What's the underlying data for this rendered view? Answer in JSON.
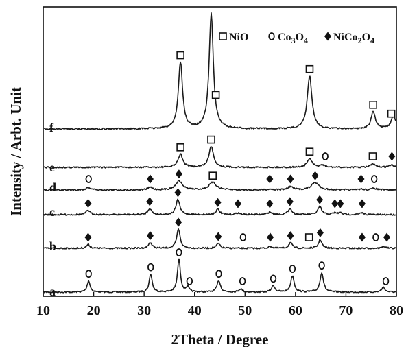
{
  "chart_data": {
    "type": "line",
    "xlabel": "2Theta / Degree",
    "ylabel": "Intensity / Arbt. Unit",
    "xlim": [
      10,
      80
    ],
    "x_ticks": [
      10,
      20,
      30,
      40,
      50,
      60,
      70,
      80
    ],
    "y_ticks_shown": false,
    "legend": {
      "placement": "top-right",
      "entries": [
        {
          "marker": "open-square",
          "label": "NiO"
        },
        {
          "marker": "open-circle",
          "label": "Co3O4"
        },
        {
          "marker": "filled-diamond",
          "label": "NiCo2O4"
        }
      ]
    },
    "series": [
      {
        "name": "a",
        "peaks": [
          {
            "x": 19.0,
            "h": 0.35,
            "w": 0.35
          },
          {
            "x": 31.3,
            "h": 0.55,
            "w": 0.35
          },
          {
            "x": 36.9,
            "h": 1.0,
            "w": 0.35
          },
          {
            "x": 38.6,
            "h": 0.15,
            "w": 0.35
          },
          {
            "x": 44.8,
            "h": 0.35,
            "w": 0.4
          },
          {
            "x": 49.1,
            "h": 0.1,
            "w": 0.4
          },
          {
            "x": 55.6,
            "h": 0.2,
            "w": 0.4
          },
          {
            "x": 59.4,
            "h": 0.5,
            "w": 0.4
          },
          {
            "x": 65.2,
            "h": 0.6,
            "w": 0.4
          },
          {
            "x": 77.4,
            "h": 0.15,
            "w": 0.4
          }
        ],
        "markers": [
          {
            "x": 19.0,
            "type": "circle"
          },
          {
            "x": 31.3,
            "type": "circle"
          },
          {
            "x": 36.9,
            "type": "circle"
          },
          {
            "x": 39.0,
            "type": "circle"
          },
          {
            "x": 44.8,
            "type": "circle"
          },
          {
            "x": 49.5,
            "type": "circle"
          },
          {
            "x": 55.6,
            "type": "circle"
          },
          {
            "x": 59.4,
            "type": "circle"
          },
          {
            "x": 65.2,
            "type": "circle"
          },
          {
            "x": 77.9,
            "type": "circle"
          }
        ]
      },
      {
        "name": "b",
        "peaks": [
          {
            "x": 18.9,
            "h": 0.2,
            "w": 0.4
          },
          {
            "x": 31.2,
            "h": 0.3,
            "w": 0.4
          },
          {
            "x": 36.8,
            "h": 1.0,
            "w": 0.4
          },
          {
            "x": 44.7,
            "h": 0.25,
            "w": 0.4
          },
          {
            "x": 55.0,
            "h": 0.1,
            "w": 0.4
          },
          {
            "x": 59.0,
            "h": 0.3,
            "w": 0.4
          },
          {
            "x": 64.9,
            "h": 0.45,
            "w": 0.4
          },
          {
            "x": 77.5,
            "h": 0.1,
            "w": 0.4
          }
        ],
        "markers": [
          {
            "x": 18.9,
            "type": "diamond"
          },
          {
            "x": 31.2,
            "type": "diamond"
          },
          {
            "x": 36.8,
            "type": "diamond"
          },
          {
            "x": 44.7,
            "type": "diamond"
          },
          {
            "x": 49.6,
            "type": "circle"
          },
          {
            "x": 55.0,
            "type": "diamond"
          },
          {
            "x": 59.0,
            "type": "diamond"
          },
          {
            "x": 62.7,
            "type": "square"
          },
          {
            "x": 64.9,
            "type": "diamond"
          },
          {
            "x": 73.2,
            "type": "diamond"
          },
          {
            "x": 75.9,
            "type": "circle"
          },
          {
            "x": 78.1,
            "type": "diamond"
          }
        ]
      },
      {
        "name": "c",
        "peaks": [
          {
            "x": 18.9,
            "h": 0.25,
            "w": 0.45
          },
          {
            "x": 31.1,
            "h": 0.35,
            "w": 0.45
          },
          {
            "x": 36.7,
            "h": 0.85,
            "w": 0.45
          },
          {
            "x": 44.6,
            "h": 0.3,
            "w": 0.45
          },
          {
            "x": 48.6,
            "h": 0.1,
            "w": 0.45
          },
          {
            "x": 54.9,
            "h": 0.15,
            "w": 0.45
          },
          {
            "x": 58.9,
            "h": 0.35,
            "w": 0.45
          },
          {
            "x": 64.8,
            "h": 0.45,
            "w": 0.45
          },
          {
            "x": 67.8,
            "h": 0.1,
            "w": 0.45
          },
          {
            "x": 68.9,
            "h": 0.1,
            "w": 0.45
          },
          {
            "x": 73.2,
            "h": 0.1,
            "w": 0.45
          }
        ],
        "markers": [
          {
            "x": 18.9,
            "type": "diamond"
          },
          {
            "x": 31.1,
            "type": "diamond"
          },
          {
            "x": 36.7,
            "type": "diamond"
          },
          {
            "x": 44.6,
            "type": "diamond"
          },
          {
            "x": 48.6,
            "type": "diamond"
          },
          {
            "x": 54.9,
            "type": "diamond"
          },
          {
            "x": 58.9,
            "type": "diamond"
          },
          {
            "x": 64.8,
            "type": "diamond"
          },
          {
            "x": 67.8,
            "type": "diamond"
          },
          {
            "x": 68.9,
            "type": "diamond"
          },
          {
            "x": 73.2,
            "type": "diamond"
          }
        ]
      },
      {
        "name": "d",
        "peaks": [
          {
            "x": 19.0,
            "h": 0.15,
            "w": 0.6
          },
          {
            "x": 31.2,
            "h": 0.15,
            "w": 0.6
          },
          {
            "x": 36.9,
            "h": 0.55,
            "w": 0.8
          },
          {
            "x": 43.6,
            "h": 0.45,
            "w": 0.9
          },
          {
            "x": 54.9,
            "h": 0.05,
            "w": 0.6
          },
          {
            "x": 59.0,
            "h": 0.2,
            "w": 0.6
          },
          {
            "x": 63.9,
            "h": 0.45,
            "w": 0.9
          },
          {
            "x": 73.0,
            "h": 0.05,
            "w": 0.6
          },
          {
            "x": 75.6,
            "h": 0.1,
            "w": 0.6
          }
        ],
        "markers": [
          {
            "x": 19.0,
            "type": "circle"
          },
          {
            "x": 31.2,
            "type": "diamond"
          },
          {
            "x": 36.9,
            "type": "diamond"
          },
          {
            "x": 43.6,
            "type": "square"
          },
          {
            "x": 54.9,
            "type": "diamond"
          },
          {
            "x": 59.0,
            "type": "diamond"
          },
          {
            "x": 63.9,
            "type": "diamond"
          },
          {
            "x": 73.0,
            "type": "diamond"
          },
          {
            "x": 75.6,
            "type": "circle"
          }
        ]
      },
      {
        "name": "e",
        "peaks": [
          {
            "x": 37.2,
            "h": 0.6,
            "w": 0.55
          },
          {
            "x": 43.3,
            "h": 0.95,
            "w": 0.55
          },
          {
            "x": 62.8,
            "h": 0.4,
            "w": 0.55
          },
          {
            "x": 65.3,
            "h": 0.1,
            "w": 0.55
          },
          {
            "x": 75.3,
            "h": 0.15,
            "w": 0.55
          },
          {
            "x": 79.0,
            "h": 0.1,
            "w": 0.55
          }
        ],
        "markers": [
          {
            "x": 37.2,
            "type": "square"
          },
          {
            "x": 43.3,
            "type": "square"
          },
          {
            "x": 62.8,
            "type": "square"
          },
          {
            "x": 65.9,
            "type": "circle"
          },
          {
            "x": 75.3,
            "type": "square"
          },
          {
            "x": 79.1,
            "type": "diamond"
          }
        ]
      },
      {
        "name": "f",
        "peaks": [
          {
            "x": 37.2,
            "h": 0.58,
            "w": 0.5
          },
          {
            "x": 43.3,
            "h": 1.0,
            "w": 0.5
          },
          {
            "x": 62.8,
            "h": 0.46,
            "w": 0.55
          },
          {
            "x": 75.4,
            "h": 0.15,
            "w": 0.5
          },
          {
            "x": 79.4,
            "h": 0.12,
            "w": 0.5
          }
        ],
        "markers": [
          {
            "x": 37.2,
            "type": "square"
          },
          {
            "x": 44.2,
            "type": "square"
          },
          {
            "x": 62.8,
            "type": "square"
          },
          {
            "x": 75.4,
            "type": "square"
          },
          {
            "x": 79.0,
            "type": "square"
          }
        ]
      }
    ]
  }
}
